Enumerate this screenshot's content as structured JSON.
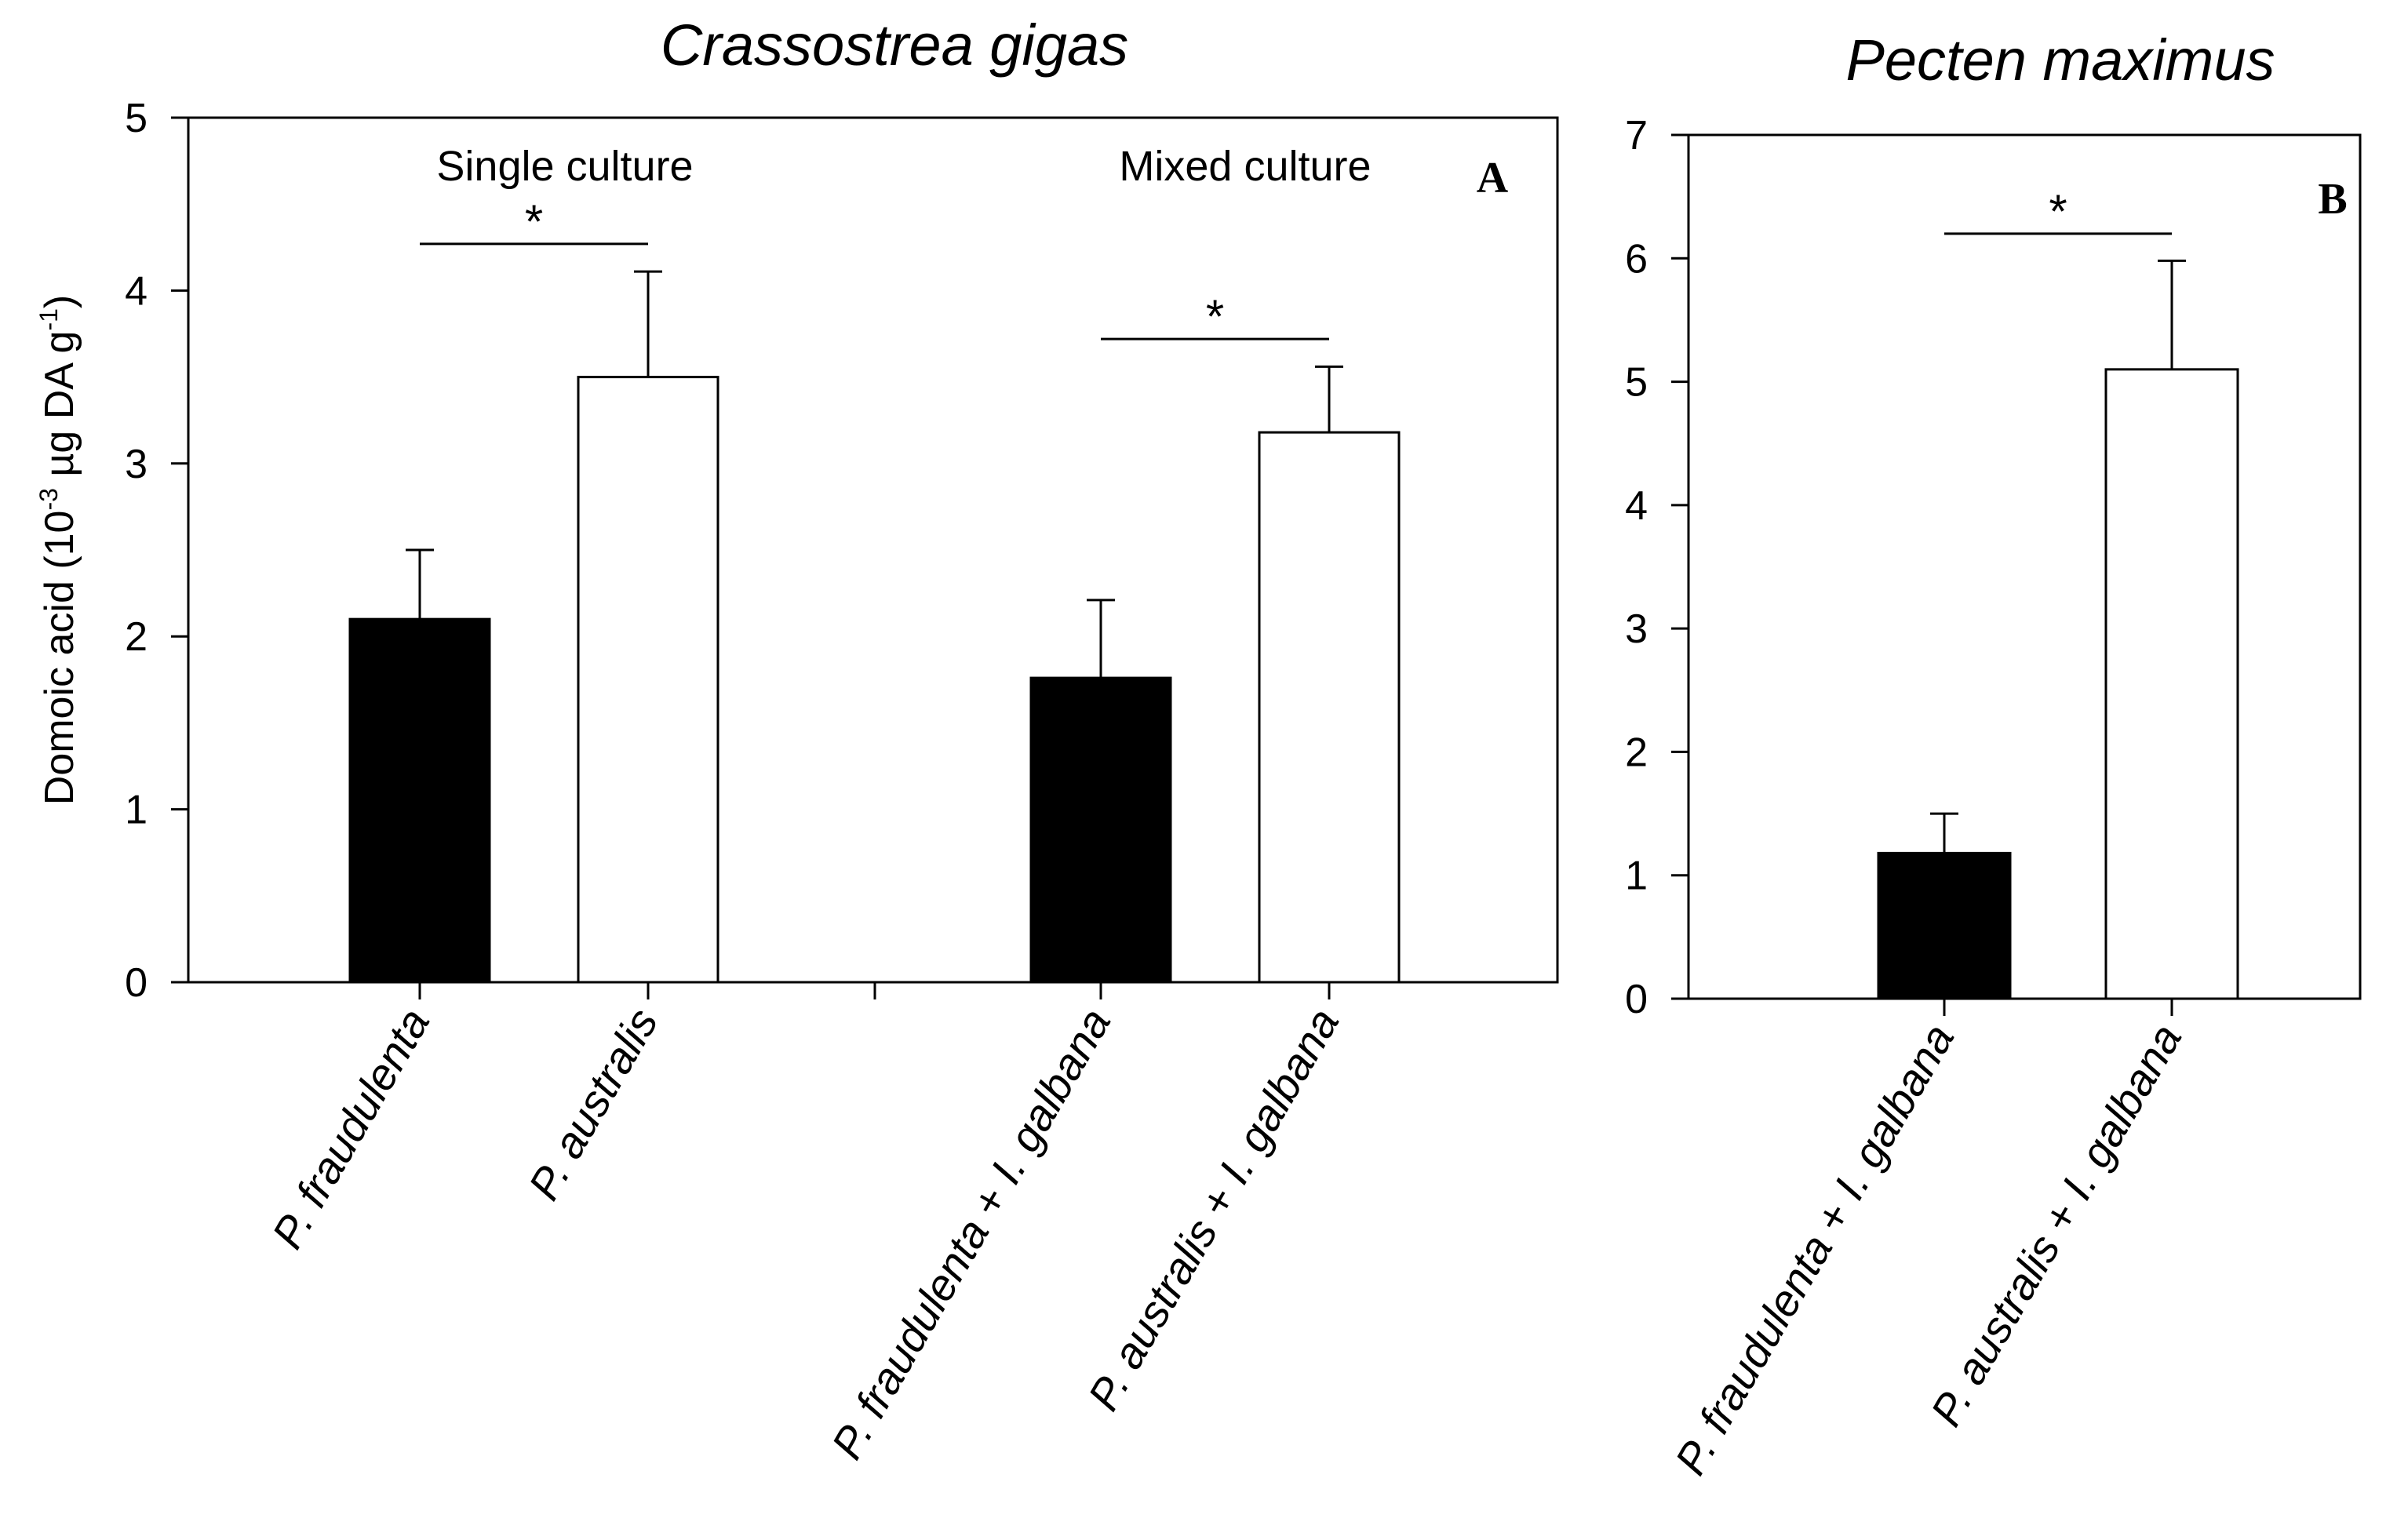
{
  "chart_data": [
    {
      "panel": "A",
      "type": "bar",
      "title": "Crassostrea gigas",
      "ylabel_main": "Domoic acid (10",
      "ylabel_exp1": "-3",
      "ylabel_mid": " µg DA g",
      "ylabel_exp2": "-1",
      "ylabel_end": ")",
      "ylim": [
        0,
        5
      ],
      "yticks": [
        0,
        1,
        2,
        3,
        4,
        5
      ],
      "categories": [
        {
          "italic1": "P. fraudulenta",
          "plain": "",
          "italic2": ""
        },
        {
          "italic1": "P. australis",
          "plain": "",
          "italic2": ""
        },
        {
          "italic1": "P. fraudulenta",
          "plain": " + ",
          "italic2": "I. galbana"
        },
        {
          "italic1": "P. australis",
          "plain": " + ",
          "italic2": "I. galbana"
        }
      ],
      "values": [
        2.1,
        3.5,
        1.76,
        3.18
      ],
      "errors": [
        0.4,
        0.61,
        0.45,
        0.38
      ],
      "fills": [
        "#000000",
        "#ffffff",
        "#000000",
        "#ffffff"
      ],
      "group_labels": [
        "Single culture",
        "Mixed culture"
      ],
      "significance": [
        {
          "pair": [
            0,
            1
          ],
          "y": 4.27,
          "label": "*"
        },
        {
          "pair": [
            2,
            3
          ],
          "y": 3.72,
          "label": "*"
        }
      ]
    },
    {
      "panel": "B",
      "type": "bar",
      "title": "Pecten maximus",
      "ylim": [
        0,
        7
      ],
      "yticks": [
        0,
        1,
        2,
        3,
        4,
        5,
        6,
        7
      ],
      "categories": [
        {
          "italic1": "P. fraudulenta",
          "plain": " + ",
          "italic2": "I. galbana"
        },
        {
          "italic1": "P. australis",
          "plain": " + ",
          "italic2": "I. galbana"
        }
      ],
      "values": [
        1.18,
        5.1
      ],
      "errors": [
        0.32,
        0.88
      ],
      "fills": [
        "#000000",
        "#ffffff"
      ],
      "significance": [
        {
          "pair": [
            0,
            1
          ],
          "y": 6.2,
          "label": "*"
        }
      ]
    }
  ]
}
